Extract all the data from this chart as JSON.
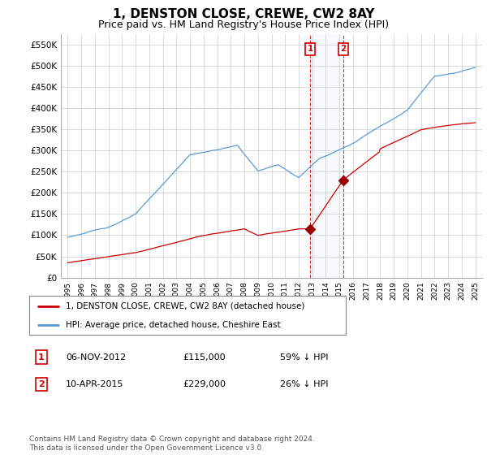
{
  "title": "1, DENSTON CLOSE, CREWE, CW2 8AY",
  "subtitle": "Price paid vs. HM Land Registry's House Price Index (HPI)",
  "title_fontsize": 11,
  "subtitle_fontsize": 9,
  "ylim": [
    0,
    575000
  ],
  "yticks": [
    0,
    50000,
    100000,
    150000,
    200000,
    250000,
    300000,
    350000,
    400000,
    450000,
    500000,
    550000
  ],
  "ytick_labels": [
    "£0",
    "£50K",
    "£100K",
    "£150K",
    "£200K",
    "£250K",
    "£300K",
    "£350K",
    "£400K",
    "£450K",
    "£500K",
    "£550K"
  ],
  "hpi_color": "#5b9bd5",
  "price_color": "#cc0000",
  "marker_color": "#990000",
  "legend_label_price": "1, DENSTON CLOSE, CREWE, CW2 8AY (detached house)",
  "legend_label_hpi": "HPI: Average price, detached house, Cheshire East",
  "transaction1_price": 115000,
  "transaction1_label": "1",
  "transaction1_year": 2012.85,
  "transaction2_price": 229000,
  "transaction2_label": "2",
  "transaction2_year": 2015.27,
  "transaction1_date": "06-NOV-2012",
  "transaction2_date": "10-APR-2015",
  "transaction1_pct": "59% ↓ HPI",
  "transaction2_pct": "26% ↓ HPI",
  "transaction1_price_str": "£115,000",
  "transaction2_price_str": "£229,000",
  "footnote": "Contains HM Land Registry data © Crown copyright and database right 2024.\nThis data is licensed under the Open Government Licence v3.0.",
  "background_color": "#ffffff",
  "grid_color": "#cccccc"
}
